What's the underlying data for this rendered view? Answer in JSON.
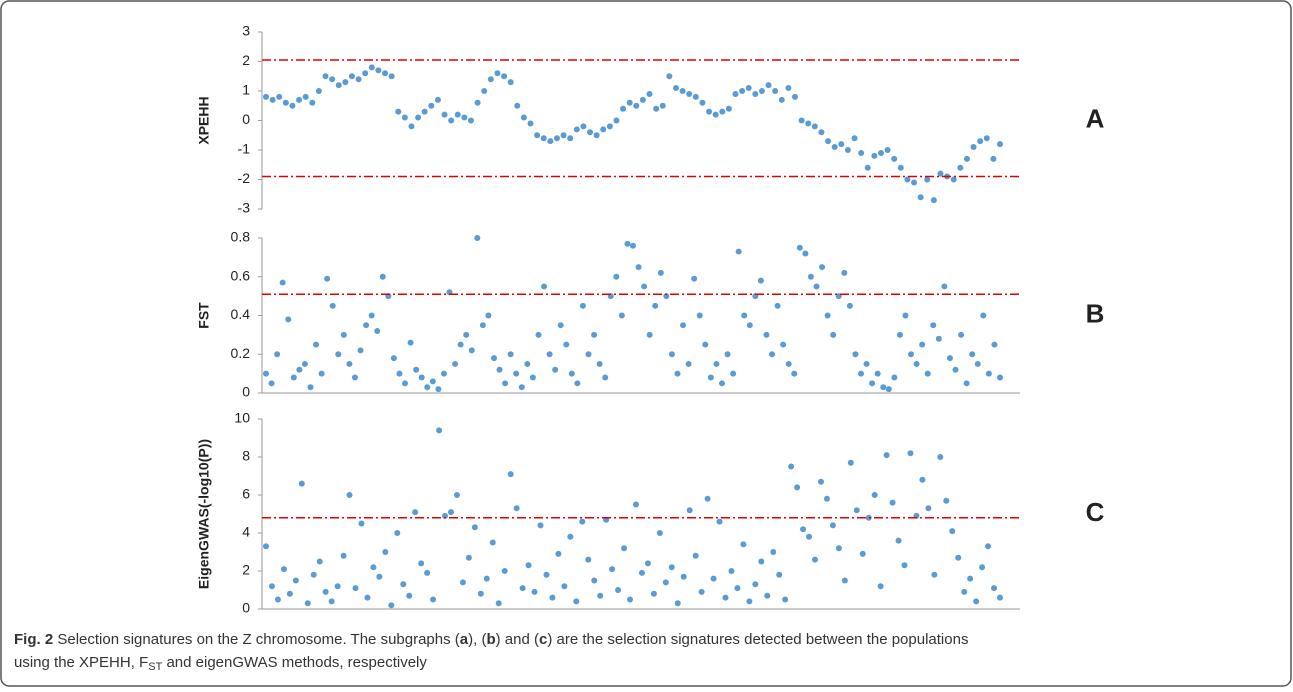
{
  "chart_data": [
    {
      "type": "scatter",
      "ylabel": "XPEHH",
      "panel": "A",
      "color": "#5b9bd5",
      "threshold_color": "#e00000",
      "ylim": [
        -3,
        3
      ],
      "yticks": [
        -3,
        -2,
        -1,
        0,
        1,
        2,
        3
      ],
      "thresholds": [
        2.05,
        -1.9
      ],
      "values": [
        0.8,
        0.7,
        0.8,
        0.6,
        0.5,
        0.7,
        0.8,
        0.6,
        1.0,
        1.5,
        1.4,
        1.2,
        1.3,
        1.5,
        1.4,
        1.6,
        1.8,
        1.7,
        1.6,
        1.5,
        0.3,
        0.1,
        -0.2,
        0.1,
        0.3,
        0.5,
        0.7,
        0.2,
        0.0,
        0.2,
        0.1,
        0.0,
        0.6,
        1.0,
        1.4,
        1.6,
        1.5,
        1.3,
        0.5,
        0.1,
        -0.1,
        -0.5,
        -0.6,
        -0.7,
        -0.6,
        -0.5,
        -0.6,
        -0.3,
        -0.2,
        -0.4,
        -0.5,
        -0.3,
        -0.2,
        0.0,
        0.4,
        0.6,
        0.5,
        0.7,
        0.9,
        0.4,
        0.5,
        1.5,
        1.1,
        1.0,
        0.9,
        0.8,
        0.6,
        0.3,
        0.2,
        0.3,
        0.4,
        0.9,
        1.0,
        1.1,
        0.9,
        1.0,
        1.2,
        1.0,
        0.7,
        1.1,
        0.8,
        0.0,
        -0.1,
        -0.2,
        -0.4,
        -0.7,
        -0.9,
        -0.8,
        -1.0,
        -0.6,
        -1.1,
        -1.6,
        -1.2,
        -1.1,
        -1.0,
        -1.3,
        -1.6,
        -2.0,
        -2.1,
        -2.6,
        -2.0,
        -2.7,
        -1.8,
        -1.9,
        -2.0,
        -1.6,
        -1.3,
        -0.9,
        -0.7,
        -0.6,
        -1.3,
        -0.8
      ]
    },
    {
      "type": "scatter",
      "ylabel": "FST",
      "panel": "B",
      "color": "#5b9bd5",
      "threshold_color": "#e00000",
      "ylim": [
        0,
        0.8
      ],
      "yticks": [
        0,
        0.2,
        0.4,
        0.6,
        0.8
      ],
      "thresholds": [
        0.51
      ],
      "values": [
        0.1,
        0.05,
        0.2,
        0.57,
        0.38,
        0.08,
        0.12,
        0.15,
        0.03,
        0.25,
        0.1,
        0.59,
        0.45,
        0.2,
        0.3,
        0.15,
        0.08,
        0.22,
        0.35,
        0.4,
        0.32,
        0.6,
        0.5,
        0.18,
        0.1,
        0.05,
        0.26,
        0.12,
        0.08,
        0.03,
        0.06,
        0.02,
        0.1,
        0.52,
        0.15,
        0.25,
        0.3,
        0.22,
        0.8,
        0.35,
        0.4,
        0.18,
        0.12,
        0.05,
        0.2,
        0.1,
        0.03,
        0.15,
        0.08,
        0.3,
        0.55,
        0.2,
        0.12,
        0.35,
        0.25,
        0.1,
        0.05,
        0.45,
        0.2,
        0.3,
        0.15,
        0.08,
        0.5,
        0.6,
        0.4,
        0.77,
        0.76,
        0.65,
        0.55,
        0.3,
        0.45,
        0.62,
        0.5,
        0.2,
        0.1,
        0.35,
        0.15,
        0.59,
        0.4,
        0.25,
        0.08,
        0.15,
        0.05,
        0.2,
        0.1,
        0.73,
        0.4,
        0.35,
        0.5,
        0.58,
        0.3,
        0.2,
        0.45,
        0.25,
        0.15,
        0.1,
        0.75,
        0.72,
        0.6,
        0.55,
        0.65,
        0.4,
        0.3,
        0.5,
        0.62,
        0.45,
        0.2,
        0.1,
        0.15,
        0.05,
        0.1,
        0.03,
        0.02,
        0.08,
        0.3,
        0.4,
        0.2,
        0.15,
        0.25,
        0.1,
        0.35,
        0.28,
        0.55,
        0.18,
        0.12,
        0.3,
        0.05,
        0.2,
        0.15,
        0.4,
        0.1,
        0.25,
        0.08
      ]
    },
    {
      "type": "scatter",
      "ylabel": "EigenGWAS(-log10(P))",
      "panel": "C",
      "color": "#5b9bd5",
      "threshold_color": "#e00000",
      "ylim": [
        0,
        10
      ],
      "yticks": [
        0,
        2,
        4,
        6,
        8,
        10
      ],
      "thresholds": [
        4.8
      ],
      "values": [
        3.3,
        1.2,
        0.5,
        2.1,
        0.8,
        1.5,
        6.6,
        0.3,
        1.8,
        2.5,
        0.9,
        0.4,
        1.2,
        2.8,
        6.0,
        1.1,
        4.5,
        0.6,
        2.2,
        1.7,
        3.0,
        0.2,
        4.0,
        1.3,
        0.7,
        5.1,
        2.4,
        1.9,
        0.5,
        9.4,
        4.9,
        5.1,
        6.0,
        1.4,
        2.7,
        4.3,
        0.8,
        1.6,
        3.5,
        0.3,
        2.0,
        7.1,
        5.3,
        1.1,
        2.3,
        0.9,
        4.4,
        1.8,
        0.6,
        2.9,
        1.2,
        3.8,
        0.4,
        4.6,
        2.6,
        1.5,
        0.7,
        4.7,
        2.1,
        1.0,
        3.2,
        0.5,
        5.5,
        1.9,
        2.4,
        0.8,
        4.0,
        1.4,
        2.2,
        0.3,
        1.7,
        5.2,
        2.8,
        0.9,
        5.8,
        1.6,
        4.6,
        0.6,
        2.0,
        1.1,
        3.4,
        0.4,
        1.3,
        2.5,
        0.7,
        3.0,
        1.8,
        0.5,
        7.5,
        6.4,
        4.2,
        3.8,
        2.6,
        6.7,
        5.8,
        4.4,
        3.2,
        1.5,
        7.7,
        5.2,
        2.9,
        4.8,
        6.0,
        1.2,
        8.1,
        5.6,
        3.6,
        2.3,
        8.2,
        4.9,
        6.8,
        5.3,
        1.8,
        8.0,
        5.7,
        4.1,
        2.7,
        0.9,
        1.6,
        0.4,
        2.2,
        3.3,
        1.1,
        0.6
      ]
    }
  ],
  "caption": {
    "label": "Fig. 2",
    "parts": [
      "Selection signatures on the Z chromosome. The subgraphs (",
      "a",
      "), (",
      "b",
      ") and (",
      "c",
      ") are the selection signatures detected between the populations",
      "using the XPEHH, F",
      "ST",
      " and eigenGWAS methods, respectively"
    ]
  }
}
